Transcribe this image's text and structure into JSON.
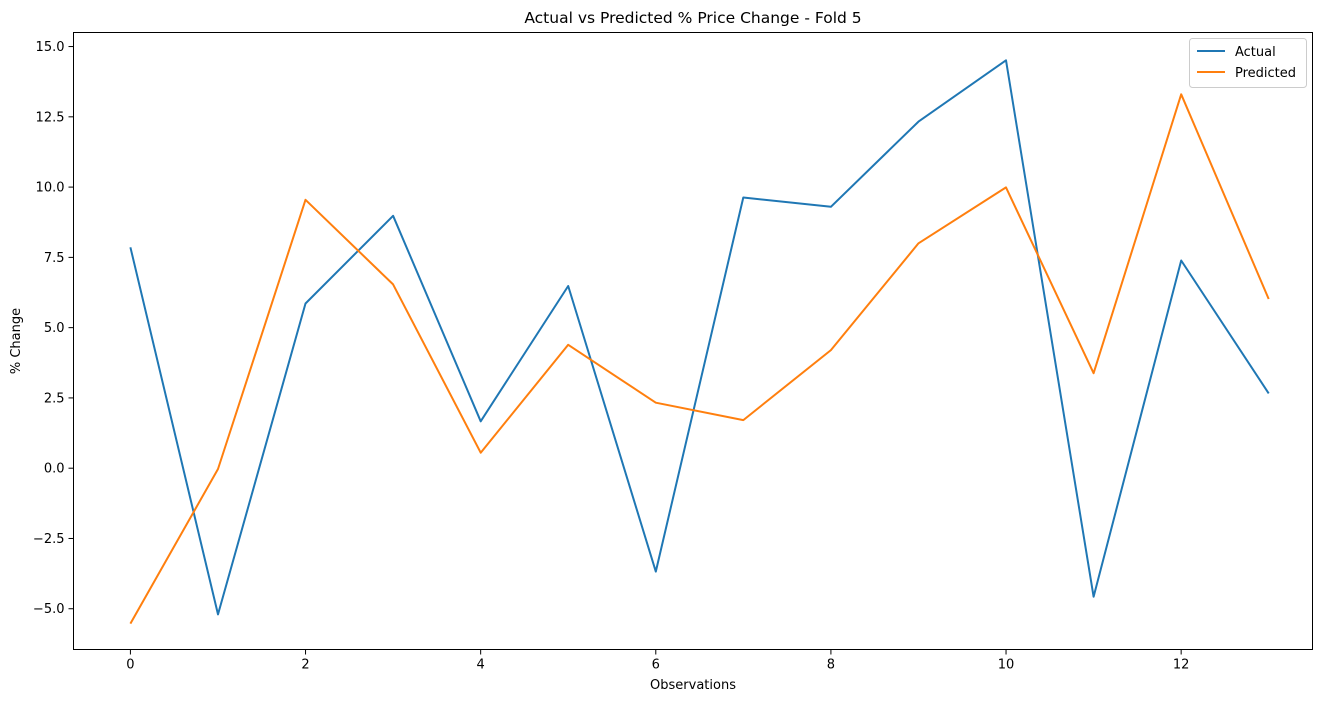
{
  "chart_data": {
    "type": "line",
    "title": "Actual vs Predicted % Price Change - Fold 5",
    "xlabel": "Observations",
    "ylabel": "% Change",
    "x": [
      0,
      1,
      2,
      3,
      4,
      5,
      6,
      7,
      8,
      9,
      10,
      11,
      12,
      13
    ],
    "xlim": [
      -0.65,
      13.5
    ],
    "ylim": [
      -6.45,
      15.5
    ],
    "xticks": [
      0,
      2,
      4,
      6,
      8,
      10,
      12
    ],
    "xtick_labels": [
      "0",
      "2",
      "4",
      "6",
      "8",
      "10",
      "12"
    ],
    "yticks": [
      -5,
      -2.5,
      0,
      2.5,
      5,
      7.5,
      10,
      12.5,
      15
    ],
    "ytick_labels": [
      "−5.0",
      "−2.5",
      "0.0",
      "2.5",
      "5.0",
      "7.5",
      "10.0",
      "12.5",
      "15.0"
    ],
    "grid": false,
    "legend_position": "top-right",
    "series": [
      {
        "name": "Actual",
        "color": "#1f77b4",
        "values": [
          7.86,
          -5.2,
          5.86,
          8.98,
          1.67,
          6.48,
          -3.68,
          9.63,
          9.3,
          12.33,
          14.51,
          -4.57,
          7.39,
          2.66
        ]
      },
      {
        "name": "Predicted",
        "color": "#ff7f0e",
        "values": [
          -5.53,
          -0.03,
          9.55,
          6.54,
          0.55,
          4.39,
          2.33,
          1.71,
          4.2,
          8.0,
          9.99,
          3.38,
          13.3,
          6.02
        ]
      }
    ]
  }
}
